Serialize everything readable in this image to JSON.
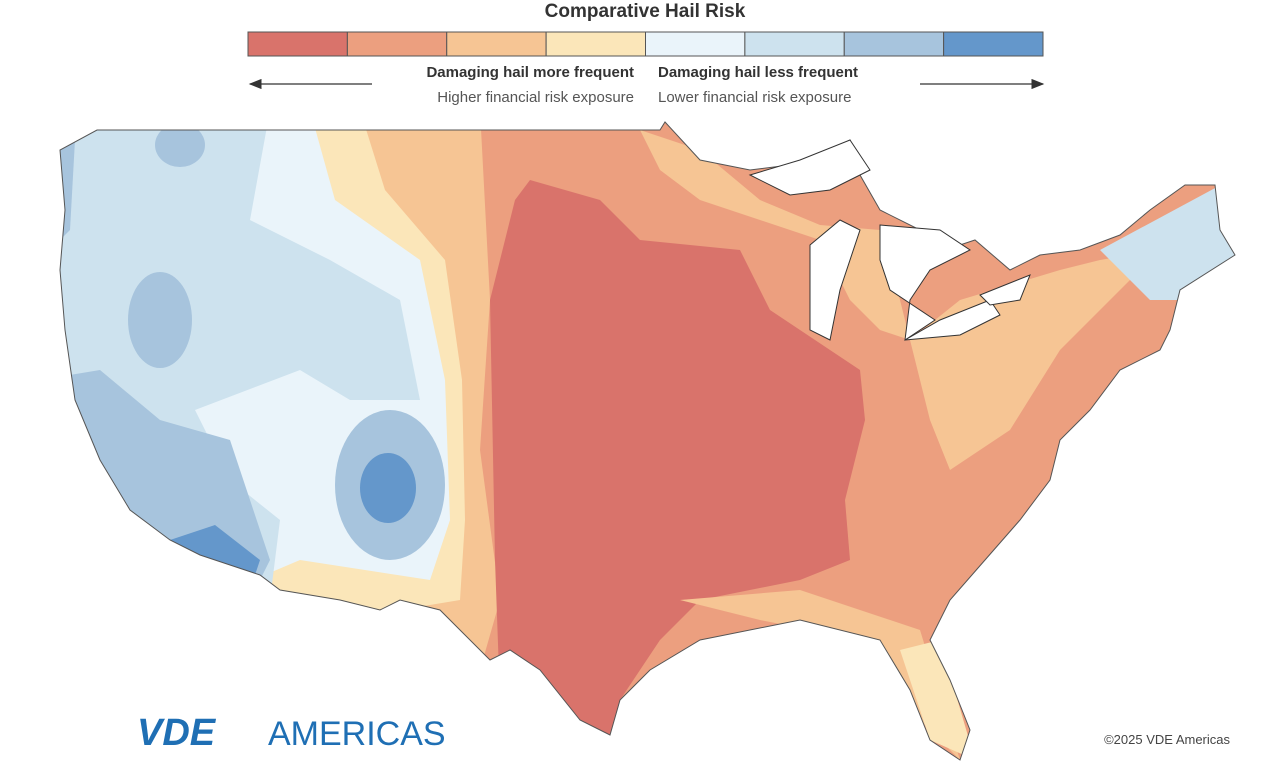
{
  "title": "Comparative Hail Risk",
  "legend": {
    "colors": [
      "#d9736b",
      "#ec9f7f",
      "#f6c594",
      "#fbe6b9",
      "#eaf4fa",
      "#cde2ee",
      "#a7c4dd",
      "#6497cb"
    ],
    "left": {
      "heading": "Damaging hail more frequent",
      "subheading": "Higher financial risk exposure"
    },
    "right": {
      "heading": "Damaging hail less frequent",
      "subheading": "Lower financial risk exposure"
    }
  },
  "logo": {
    "bold": "VDE",
    "light": "AMERICAS"
  },
  "copyright": "©2025 VDE Americas"
}
